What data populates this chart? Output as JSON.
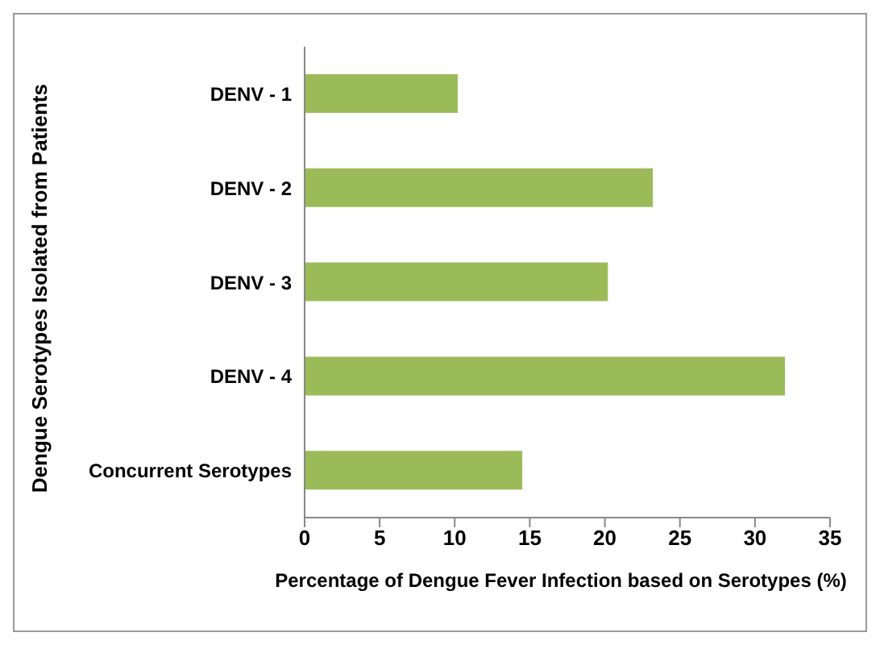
{
  "chart_data": {
    "type": "bar",
    "orientation": "horizontal",
    "xlabel": "Percentage of Dengue Fever Infection based on Serotypes (%)",
    "ylabel": "Dengue Serotypes Isolated  from Patients",
    "categories": [
      "DENV - 1",
      "DENV - 2",
      "DENV - 3",
      "DENV - 4",
      "Concurrent Serotypes"
    ],
    "values": [
      10.2,
      23.2,
      20.2,
      32,
      14.5
    ],
    "color": "#9bbb59",
    "xlim": [
      0,
      35
    ],
    "xticks": [
      0,
      5,
      10,
      15,
      20,
      25,
      30,
      35
    ],
    "grid": false
  }
}
